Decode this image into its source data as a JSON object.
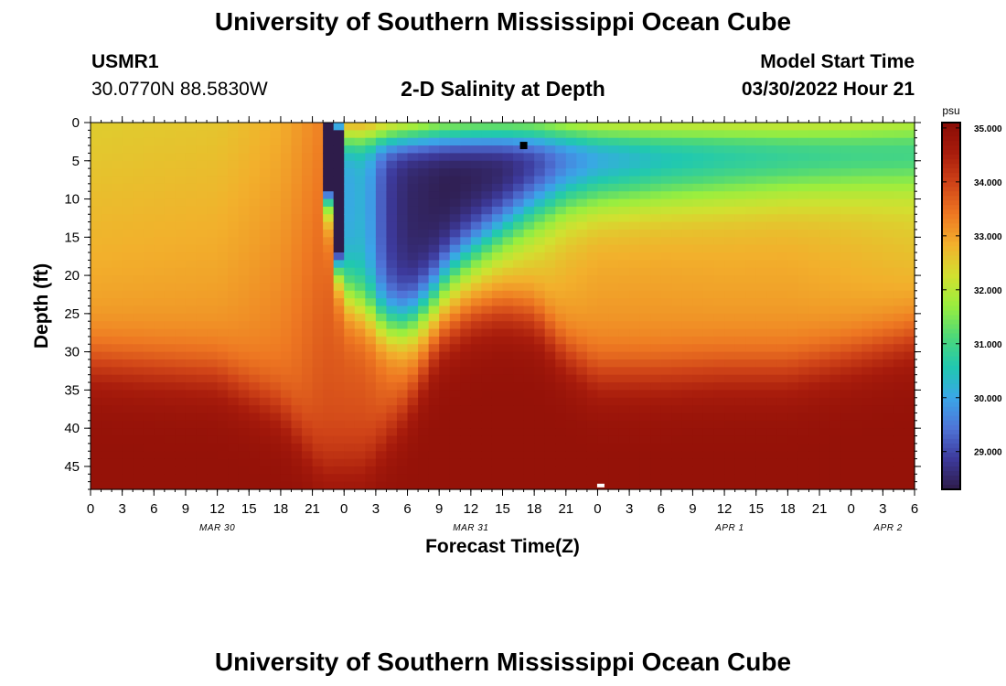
{
  "header": {
    "title_top": "University of Southern Mississippi Ocean Cube",
    "station_id": "USMR1",
    "coordinates": "30.0770N  88.5830W",
    "subtitle": "2-D Salinity at Depth",
    "model_start_label": "Model Start Time",
    "model_start_value": "03/30/2022 Hour 21",
    "title_bottom": "University of Southern Mississippi Ocean Cube"
  },
  "chart_data": {
    "type": "heatmap",
    "title": "2-D Salinity at Depth",
    "xlabel": "Forecast Time(Z)",
    "ylabel": "Depth (ft)",
    "colorbar_unit": "psu",
    "x_range_hours": [
      0,
      78
    ],
    "y_range_ft": [
      0,
      48
    ],
    "color_range_psu": [
      28.3,
      35.1
    ],
    "x_tick_hours": [
      0,
      3,
      6,
      9,
      12,
      15,
      18,
      21,
      24,
      27,
      30,
      33,
      36,
      39,
      42,
      45,
      48,
      51,
      54,
      57,
      60,
      63,
      66,
      69,
      72,
      75,
      78
    ],
    "x_tick_labels": [
      "0",
      "3",
      "6",
      "9",
      "12",
      "15",
      "18",
      "21",
      "0",
      "3",
      "6",
      "9",
      "12",
      "15",
      "18",
      "21",
      "0",
      "3",
      "6",
      "9",
      "12",
      "15",
      "18",
      "21",
      "0",
      "3",
      "6"
    ],
    "date_labels": [
      {
        "hour": 12,
        "label": "MAR 30"
      },
      {
        "hour": 36,
        "label": "MAR 31"
      },
      {
        "hour": 60.5,
        "label": "APR 1"
      },
      {
        "hour": 75.5,
        "label": "APR 2"
      }
    ],
    "y_ticks": [
      0,
      5,
      10,
      15,
      20,
      25,
      30,
      35,
      40,
      45
    ],
    "y_tick_labels": [
      "0",
      "5",
      "10",
      "15",
      "20",
      "25",
      "30",
      "35",
      "40",
      "45"
    ],
    "colorbar_ticks": [
      29,
      30,
      31,
      32,
      33,
      34,
      35
    ],
    "colorbar_tick_labels": [
      "29.000",
      "30.000",
      "31.000",
      "32.000",
      "33.000",
      "34.000",
      "35.000"
    ],
    "colormap": [
      "#2e1c4a",
      "#3d3a9c",
      "#4f74d8",
      "#3aa6e8",
      "#20c8b0",
      "#4ed878",
      "#9aee3e",
      "#d2e030",
      "#f2b02c",
      "#ee7822",
      "#d04418",
      "#a81c0c",
      "#8a0c06"
    ],
    "halocline_depth_ft": [
      [
        0,
        31.5
      ],
      [
        12,
        33
      ],
      [
        18,
        37.5
      ],
      [
        22,
        45.5
      ],
      [
        26,
        45
      ],
      [
        30,
        37
      ],
      [
        33,
        28
      ],
      [
        36,
        25
      ],
      [
        39,
        24
      ],
      [
        42,
        25
      ],
      [
        45,
        30
      ],
      [
        48,
        33
      ],
      [
        54,
        33
      ],
      [
        60,
        32.5
      ],
      [
        66,
        32.5
      ],
      [
        72,
        30.5
      ],
      [
        78,
        28
      ]
    ],
    "fresh_plume": [
      [
        0,
        0,
        0,
        0
      ],
      [
        22,
        0,
        0,
        0
      ],
      [
        24,
        30.0,
        2.0,
        22.0
      ],
      [
        26,
        30.2,
        2.0,
        24.0
      ],
      [
        28,
        28.9,
        2.0,
        26.0
      ],
      [
        30,
        28.5,
        2.0,
        26.0
      ],
      [
        32,
        28.4,
        2.0,
        23.0
      ],
      [
        34,
        28.3,
        2.0,
        19.0
      ],
      [
        36,
        28.3,
        2.0,
        16.5
      ],
      [
        39,
        28.3,
        2.0,
        13.5
      ],
      [
        42,
        28.5,
        2.0,
        11.0
      ],
      [
        45,
        29.0,
        2.0,
        9.5
      ],
      [
        48,
        29.4,
        2.0,
        9.0
      ],
      [
        54,
        29.8,
        2.0,
        8.5
      ],
      [
        60,
        30.0,
        2.0,
        8.0
      ],
      [
        66,
        30.1,
        2.0,
        7.5
      ],
      [
        72,
        30.2,
        2.0,
        7.0
      ],
      [
        78,
        30.2,
        2.0,
        6.5
      ]
    ],
    "min_marker": {
      "hour": 41,
      "depth_ft": 3
    },
    "max_marker": {
      "hour": 48.3,
      "depth_ft": 47.5
    }
  }
}
